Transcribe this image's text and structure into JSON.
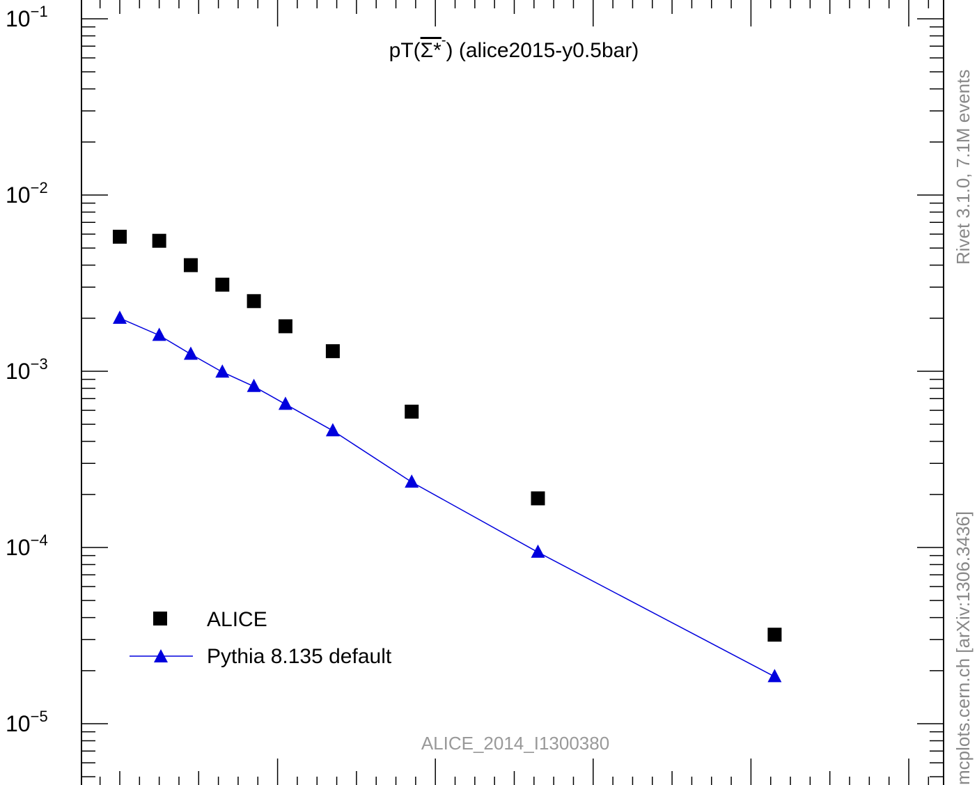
{
  "chart_data": {
    "type": "scatter",
    "title": {
      "prefix": "pT(",
      "particle": "Σ*",
      "charge": "-",
      "suffix": ") (alice2015-y0.5bar)"
    },
    "yscale": "log",
    "ylim": [
      5e-06,
      0.1
    ],
    "xlim": [
      -0.5,
      10.3
    ],
    "y_tick_labels": [
      {
        "base": "10",
        "exp": "−1",
        "value": 0.1
      },
      {
        "base": "10",
        "exp": "−2",
        "value": 0.01
      },
      {
        "base": "10",
        "exp": "−3",
        "value": 0.001
      },
      {
        "base": "10",
        "exp": "−4",
        "value": 0.0001
      },
      {
        "base": "10",
        "exp": "−5",
        "value": 1e-05
      }
    ],
    "series": [
      {
        "name": "ALICE",
        "marker": "square",
        "color": "#000000",
        "x": [
          0.0,
          0.5,
          0.9,
          1.3,
          1.7,
          2.1,
          2.7,
          3.7,
          5.3,
          8.3
        ],
        "values": [
          0.0058,
          0.0055,
          0.004,
          0.0031,
          0.0025,
          0.0018,
          0.0013,
          0.00059,
          0.00019,
          3.2e-05
        ]
      },
      {
        "name": "Pythia 8.135 default",
        "marker": "triangle",
        "line": true,
        "color": "#0000dd",
        "x": [
          0.0,
          0.5,
          0.9,
          1.3,
          1.7,
          2.1,
          2.7,
          3.7,
          5.3,
          8.3
        ],
        "values": [
          0.002,
          0.0016,
          0.00125,
          0.00099,
          0.00082,
          0.00065,
          0.00046,
          0.000235,
          9.4e-05,
          1.85e-05
        ]
      }
    ],
    "legend_position": "bottom-left",
    "analysis_label": "ALICE_2014_I1300380",
    "side_label_top": "Rivet 3.1.0,  7.1M events",
    "side_label_bottom": "mcplots.cern.ch [arXiv:1306.3436]",
    "grid": false
  }
}
